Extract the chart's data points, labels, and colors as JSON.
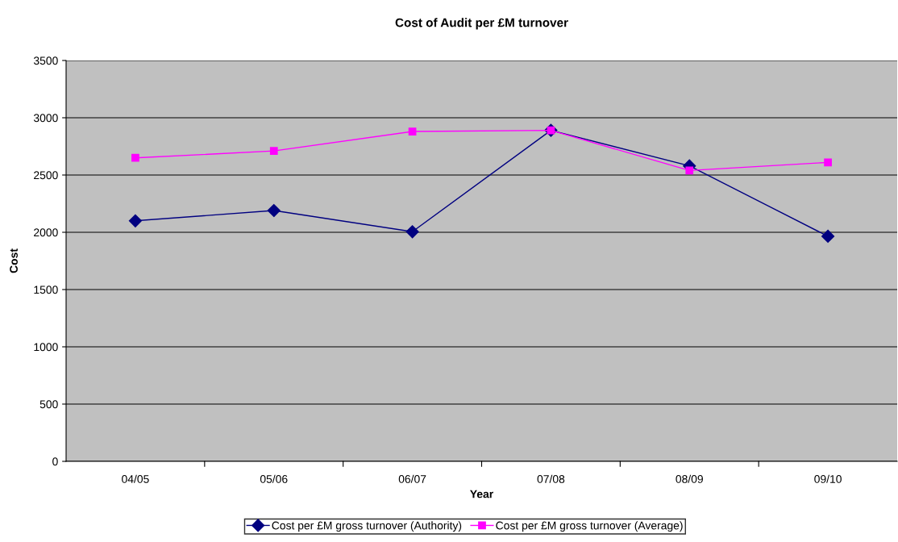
{
  "chart_data": {
    "type": "line",
    "title": "Cost of Audit per £M turnover",
    "xlabel": "Year",
    "ylabel": "Cost",
    "categories": [
      "04/05",
      "05/06",
      "06/07",
      "07/08",
      "08/09",
      "09/10"
    ],
    "series": [
      {
        "name": "Cost per £M gross turnover (Authority)",
        "color": "#000080",
        "marker": "diamond",
        "values": [
          2100,
          2190,
          2005,
          2890,
          2580,
          1965
        ]
      },
      {
        "name": "Cost per £M gross turnover (Average)",
        "color": "#ff00ff",
        "marker": "square",
        "values": [
          2650,
          2710,
          2880,
          2890,
          2540,
          2610
        ]
      }
    ],
    "ylim": [
      0,
      3500
    ],
    "yticks": [
      0,
      500,
      1000,
      1500,
      2000,
      2500,
      3000,
      3500
    ],
    "grid": "y",
    "legend": "bottom",
    "line_style": "solid"
  }
}
